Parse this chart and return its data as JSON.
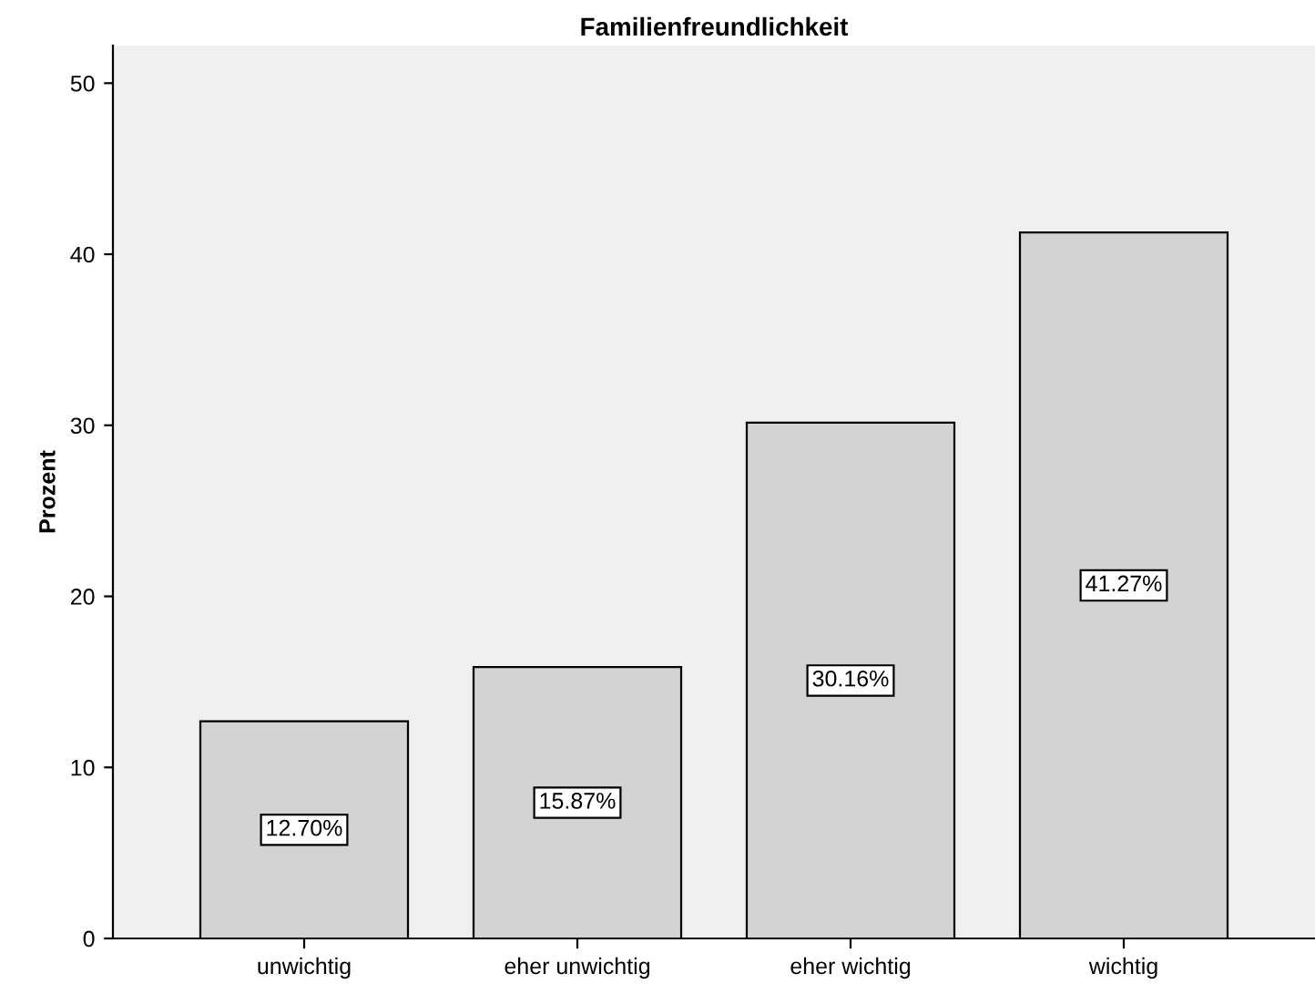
{
  "chart_data": {
    "type": "bar",
    "title": "Familienfreundlichkeit",
    "ylabel": "Prozent",
    "categories": [
      "unwichtig",
      "eher unwichtig",
      "eher wichtig",
      "wichtig"
    ],
    "values": [
      12.7,
      15.87,
      30.16,
      41.27
    ],
    "value_labels": [
      "12.70%",
      "15.87%",
      "30.16%",
      "41.27%"
    ],
    "color": "#d3d3d3",
    "ylim": [
      0,
      52.2
    ],
    "yticks": [
      0,
      10,
      20,
      30,
      40,
      50
    ],
    "grid": false
  }
}
